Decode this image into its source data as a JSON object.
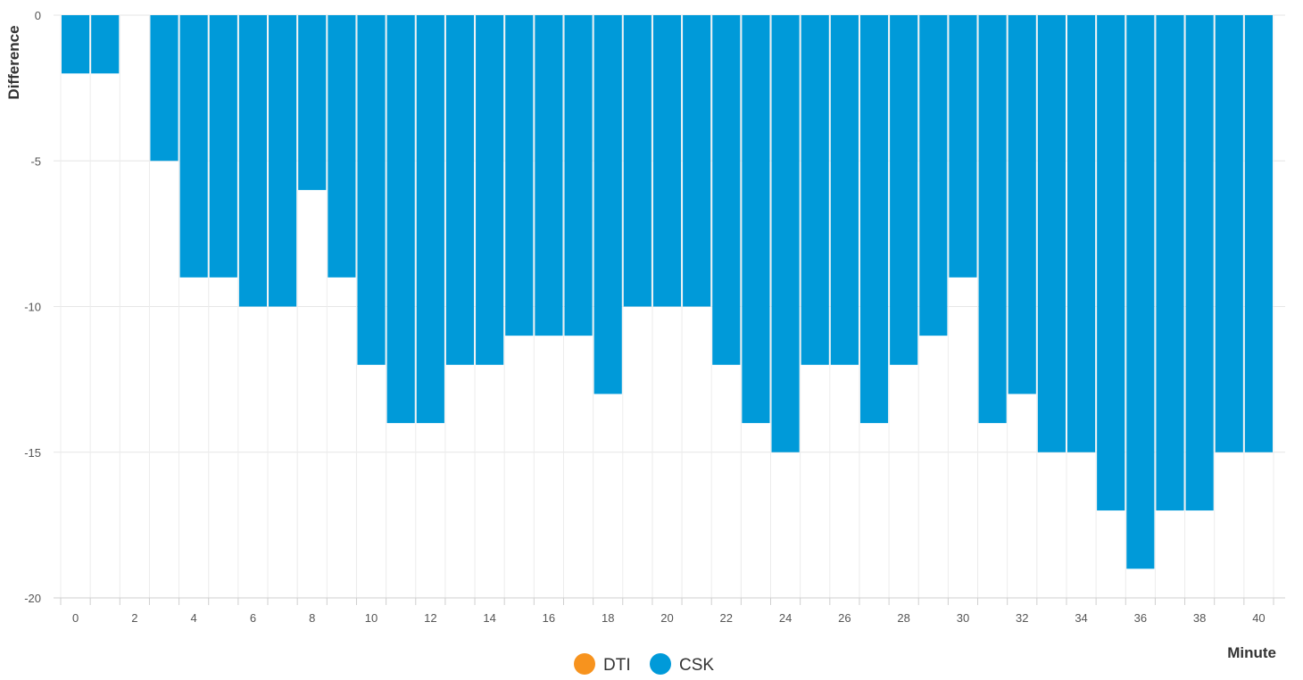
{
  "chart_data": {
    "type": "bar",
    "title": "",
    "xlabel": "Minute",
    "ylabel": "Difference",
    "ylim": [
      -20,
      0
    ],
    "y_ticks": [
      0,
      -5,
      -10,
      -15,
      -20
    ],
    "x_ticks": [
      0,
      2,
      4,
      6,
      8,
      10,
      12,
      14,
      16,
      18,
      20,
      22,
      24,
      26,
      28,
      30,
      32,
      34,
      36,
      38,
      40
    ],
    "grid": true,
    "legend_position": "bottom-center",
    "x": [
      0,
      1,
      2,
      3,
      4,
      5,
      6,
      7,
      8,
      9,
      10,
      11,
      12,
      13,
      14,
      15,
      16,
      17,
      18,
      19,
      20,
      21,
      22,
      23,
      24,
      25,
      26,
      27,
      28,
      29,
      30,
      31,
      32,
      33,
      34,
      35,
      36,
      37,
      38,
      39,
      40
    ],
    "series": [
      {
        "name": "DTI",
        "color": "#f7931e",
        "values": [
          0,
          0,
          0,
          0,
          0,
          0,
          0,
          0,
          0,
          0,
          0,
          0,
          0,
          0,
          0,
          0,
          0,
          0,
          0,
          0,
          0,
          0,
          0,
          0,
          0,
          0,
          0,
          0,
          0,
          0,
          0,
          0,
          0,
          0,
          0,
          0,
          0,
          0,
          0,
          0,
          0
        ]
      },
      {
        "name": "CSK",
        "color": "#009ad9",
        "values": [
          -2,
          -2,
          0,
          -5,
          -9,
          -9,
          -10,
          -10,
          -6,
          -9,
          -12,
          -14,
          -14,
          -12,
          -12,
          -11,
          -11,
          -11,
          -13,
          -10,
          -10,
          -10,
          -12,
          -14,
          -15,
          -12,
          -12,
          -14,
          -12,
          -11,
          -9,
          -14,
          -13,
          -15,
          -15,
          -17,
          -19,
          -17,
          -17,
          -15,
          -15
        ]
      }
    ]
  }
}
